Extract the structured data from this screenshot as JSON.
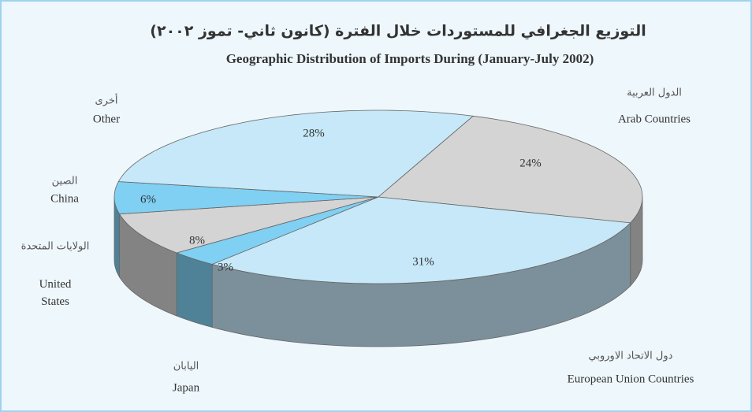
{
  "chart_data": {
    "type": "pie3d",
    "title_ar": "التوزيع الجغرافي للمستوردات خلال الفترة (كانون ثاني- تموز ٢٠٠٢)",
    "title": "Geographic Distribution of Imports During  (January-July 2002)",
    "categories": [
      "Arab Countries",
      "European Union Countries",
      "Japan",
      "United States",
      "China",
      "Other"
    ],
    "categories_ar": [
      "الدول العربية",
      "دول الاتحاد الاوروبي",
      "اليابان",
      "الولايات المتحدة",
      "الصين",
      "أخرى"
    ],
    "values": [
      24,
      31,
      3,
      8,
      6,
      28
    ],
    "value_labels": [
      "24%",
      "31%",
      "3%",
      "8%",
      "6%",
      "28%"
    ],
    "colors": [
      "#d4d4d4",
      "#c6e8f8",
      "#7fd0f3",
      "#d4d4d4",
      "#7fd0f3",
      "#c6e8f8"
    ]
  }
}
